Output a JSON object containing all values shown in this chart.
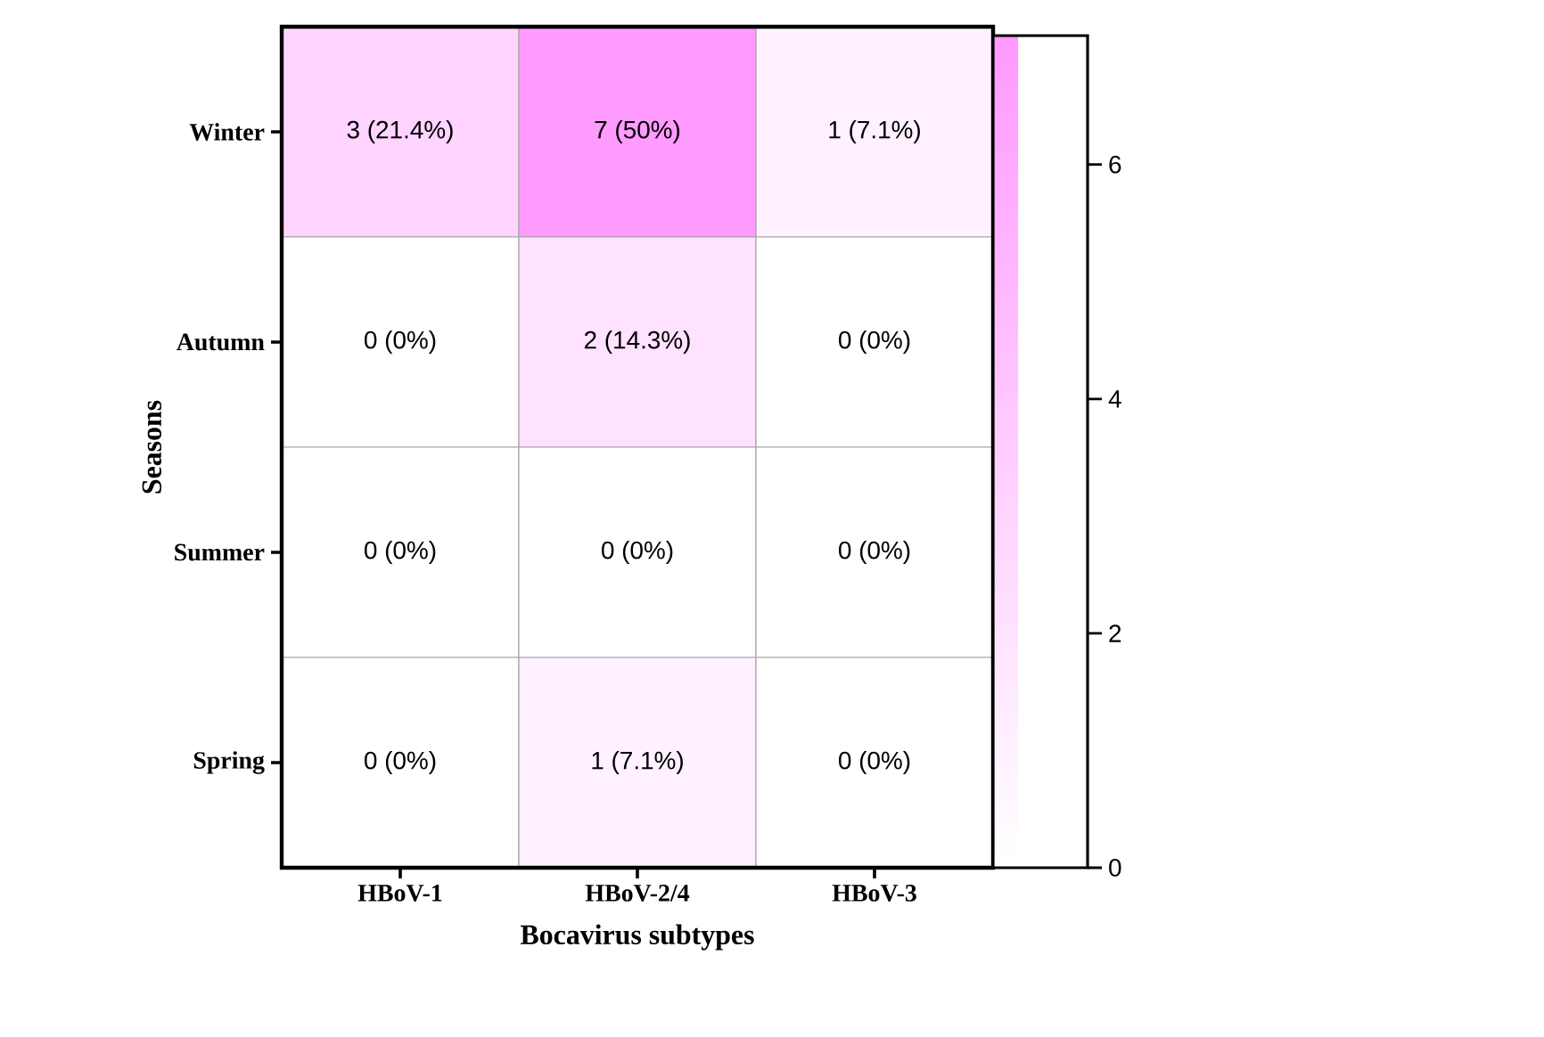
{
  "chart_data": {
    "type": "heatmap",
    "xlabel": "Bocavirus subtypes",
    "ylabel": "Seasons",
    "categories": [
      "HBoV-1",
      "HBoV-2/4",
      "HBoV-3"
    ],
    "y_categories": [
      "Winter",
      "Autumn",
      "Summer",
      "Spring"
    ],
    "cells": [
      [
        3,
        7,
        1
      ],
      [
        0,
        2,
        0
      ],
      [
        0,
        0,
        0
      ],
      [
        0,
        1,
        0
      ]
    ],
    "cell_labels": [
      [
        "3 (21.4%)",
        "7 (50%)",
        "1 (7.1%)"
      ],
      [
        "0 (0%)",
        "2 (14.3%)",
        "0 (0%)"
      ],
      [
        "0 (0%)",
        "0 (0%)",
        "0 (0%)"
      ],
      [
        "0 (0%)",
        "1 (7.1%)",
        "0 (0%)"
      ]
    ],
    "clim": [
      0,
      7.1
    ],
    "cticks": [
      0,
      2,
      4,
      6
    ]
  }
}
